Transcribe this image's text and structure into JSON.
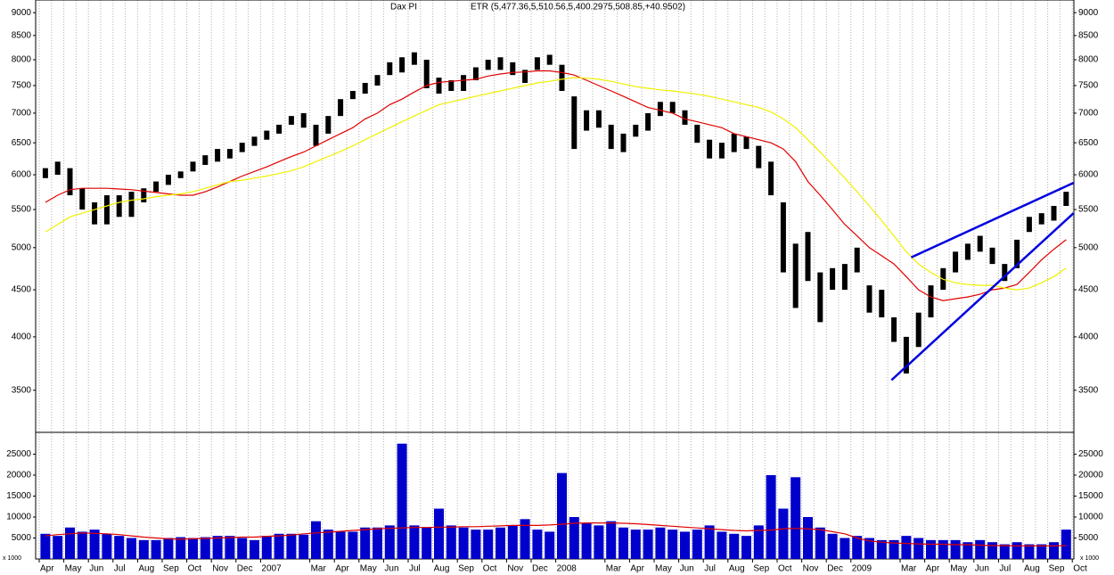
{
  "chart_data": [
    {
      "type": "range-bar",
      "title": "Dax PI",
      "subtitle": "ETR (5,477.36,5,510.56,5,400.2975,508.85,+40.9502)",
      "categories": [
        "Apr",
        null,
        "May",
        null,
        "Jun",
        null,
        "Jul",
        null,
        "Aug",
        null,
        "Sep",
        null,
        "Oct",
        null,
        "Nov",
        null,
        "Dec",
        null,
        "2007",
        null,
        null,
        null,
        "Mar",
        null,
        "Apr",
        null,
        "May",
        null,
        "Jun",
        null,
        "Jul",
        null,
        "Aug",
        null,
        "Sep",
        null,
        "Oct",
        null,
        "Nov",
        null,
        "Dec",
        null,
        "2008",
        null,
        null,
        null,
        "Mar",
        null,
        "Apr",
        null,
        "May",
        null,
        "Jun",
        null,
        "Jul",
        null,
        "Aug",
        null,
        "Sep",
        null,
        "Oct",
        null,
        "Nov",
        null,
        "Dec",
        null,
        "2009",
        null,
        null,
        null,
        "Mar",
        null,
        "Apr",
        null,
        "May",
        null,
        "Jun",
        null,
        "Jul",
        null,
        "Aug",
        null,
        "Sep",
        null,
        "Oct"
      ],
      "color": "#000000",
      "high": [
        6100,
        6200,
        6100,
        5800,
        5600,
        5700,
        5700,
        5750,
        5800,
        5900,
        6000,
        6050,
        6200,
        6300,
        6400,
        6400,
        6500,
        6600,
        6700,
        6800,
        6950,
        7000,
        6800,
        6950,
        7250,
        7400,
        7550,
        7700,
        7950,
        8050,
        8150,
        8000,
        7650,
        7600,
        7700,
        7850,
        8000,
        8050,
        7950,
        7800,
        8050,
        8100,
        7900,
        7300,
        7050,
        7050,
        6800,
        6650,
        6800,
        7000,
        7200,
        7200,
        7050,
        6800,
        6550,
        6500,
        6650,
        6600,
        6450,
        6200,
        5600,
        5050,
        5200,
        4700,
        4750,
        4800,
        5000,
        4550,
        4500,
        4200,
        4000,
        4250,
        4550,
        4750,
        4950,
        5050,
        5150,
        5000,
        4800,
        5100,
        5400,
        5450,
        5550,
        5750,
        null
      ],
      "low": [
        5950,
        6000,
        5700,
        5500,
        5300,
        5300,
        5400,
        5400,
        5600,
        5750,
        5850,
        5950,
        6050,
        6150,
        6200,
        6250,
        6350,
        6450,
        6550,
        6650,
        6800,
        6750,
        6450,
        6650,
        6950,
        7250,
        7350,
        7500,
        7700,
        7750,
        7900,
        7450,
        7350,
        7400,
        7400,
        7600,
        7800,
        7800,
        7700,
        7550,
        7800,
        7900,
        7400,
        6400,
        6700,
        6750,
        6400,
        6350,
        6600,
        6700,
        6950,
        7000,
        6800,
        6500,
        6250,
        6250,
        6350,
        6400,
        6100,
        5700,
        4700,
        4300,
        4600,
        4150,
        4500,
        4500,
        4700,
        4250,
        4200,
        3950,
        3650,
        3900,
        4200,
        4500,
        4700,
        4850,
        4950,
        4800,
        4600,
        4750,
        5200,
        5300,
        5350,
        5550,
        null
      ],
      "lines": [
        {
          "color": "#e00000",
          "values": [
            5600,
            5700,
            5780,
            5800,
            5800,
            5800,
            5790,
            5780,
            5760,
            5740,
            5720,
            5700,
            5700,
            5750,
            5820,
            5900,
            5980,
            6050,
            6120,
            6200,
            6280,
            6350,
            6450,
            6550,
            6650,
            6750,
            6900,
            7000,
            7150,
            7250,
            7380,
            7500,
            7560,
            7580,
            7600,
            7620,
            7680,
            7720,
            7750,
            7760,
            7780,
            7780,
            7750,
            7700,
            7600,
            7500,
            7400,
            7300,
            7200,
            7100,
            7050,
            7000,
            6900,
            6850,
            6800,
            6750,
            6650,
            6600,
            6550,
            6500,
            6400,
            6200,
            5900,
            5700,
            5500,
            5300,
            5150,
            5000,
            4900,
            4800,
            4650,
            4500,
            4420,
            4380,
            4400,
            4420,
            4450,
            4500,
            4520,
            4560,
            4700,
            4850,
            4980,
            5100,
            null
          ]
        },
        {
          "color": "#f0f000",
          "values": [
            5200,
            5300,
            5400,
            5450,
            5500,
            5550,
            5600,
            5630,
            5650,
            5680,
            5700,
            5720,
            5750,
            5800,
            5850,
            5900,
            5920,
            5950,
            5980,
            6020,
            6060,
            6120,
            6200,
            6280,
            6360,
            6450,
            6550,
            6650,
            6750,
            6850,
            6950,
            7050,
            7150,
            7200,
            7250,
            7300,
            7350,
            7400,
            7450,
            7500,
            7550,
            7580,
            7620,
            7650,
            7640,
            7620,
            7580,
            7530,
            7480,
            7450,
            7420,
            7400,
            7370,
            7340,
            7300,
            7250,
            7200,
            7150,
            7100,
            7020,
            6900,
            6750,
            6550,
            6350,
            6150,
            5950,
            5750,
            5550,
            5350,
            5150,
            4950,
            4800,
            4700,
            4620,
            4580,
            4560,
            4550,
            4550,
            4520,
            4500,
            4520,
            4580,
            4650,
            4750,
            null
          ]
        }
      ],
      "trendlines": [
        {
          "color": "#0000e0",
          "x": [
            69.3,
            84.1
          ],
          "values": [
            3590,
            5450
          ]
        },
        {
          "color": "#0000e0",
          "x": [
            70.9,
            84.1
          ],
          "values": [
            4880,
            5880
          ]
        }
      ],
      "log_scale": true,
      "grid": "x",
      "ylim": [
        3150,
        9290
      ],
      "yticks": [
        3500,
        4000,
        4500,
        5000,
        5500,
        6000,
        6500,
        7000,
        7500,
        8000,
        8500,
        9000
      ]
    },
    {
      "type": "bar",
      "ylabel": "x 1000",
      "color": "#0000cc",
      "values": [
        6000,
        5500,
        7500,
        6500,
        7000,
        6000,
        5500,
        5000,
        4500,
        4500,
        5000,
        5200,
        5000,
        5200,
        5500,
        5500,
        5000,
        4500,
        5500,
        6000,
        6000,
        5800,
        9000,
        7000,
        6500,
        6500,
        7500,
        7500,
        8000,
        27500,
        8000,
        7500,
        12000,
        8000,
        7500,
        7000,
        7000,
        7500,
        8000,
        9500,
        7000,
        6500,
        20500,
        10000,
        8500,
        8000,
        9000,
        7500,
        7000,
        7000,
        7500,
        7000,
        6500,
        7000,
        8000,
        6500,
        6000,
        5500,
        8000,
        20000,
        12000,
        19500,
        10000,
        7500,
        6000,
        5000,
        5500,
        5000,
        4500,
        4500,
        5500,
        5000,
        4500,
        4500,
        4500,
        4000,
        4500,
        4000,
        3500,
        4000,
        3500,
        3500,
        4000,
        7000,
        null
      ],
      "lines": [
        {
          "color": "#e00000",
          "values": [
            5500,
            5800,
            6000,
            6200,
            6100,
            6000,
            5800,
            5500,
            5200,
            5000,
            4800,
            4700,
            4800,
            4900,
            5000,
            5100,
            5200,
            5200,
            5400,
            5500,
            5700,
            6000,
            6200,
            6400,
            6600,
            6800,
            7000,
            7200,
            7300,
            7400,
            7500,
            7500,
            7600,
            7600,
            7700,
            7700,
            7800,
            7900,
            8000,
            8000,
            8000,
            8100,
            8300,
            8500,
            8600,
            8600,
            8600,
            8500,
            8400,
            8200,
            8000,
            7800,
            7600,
            7400,
            7200,
            7000,
            6800,
            6700,
            6800,
            6900,
            7200,
            7300,
            7200,
            7000,
            6500,
            6000,
            5000,
            4300,
            4000,
            3800,
            3700,
            3600,
            3500,
            3500,
            3400,
            3400,
            3300,
            3200,
            3200,
            3100,
            3100,
            3100,
            3100,
            3200,
            null
          ]
        }
      ],
      "ylim": [
        0,
        30200
      ],
      "yticks": [
        5000,
        10000,
        15000,
        20000,
        25000
      ]
    }
  ]
}
